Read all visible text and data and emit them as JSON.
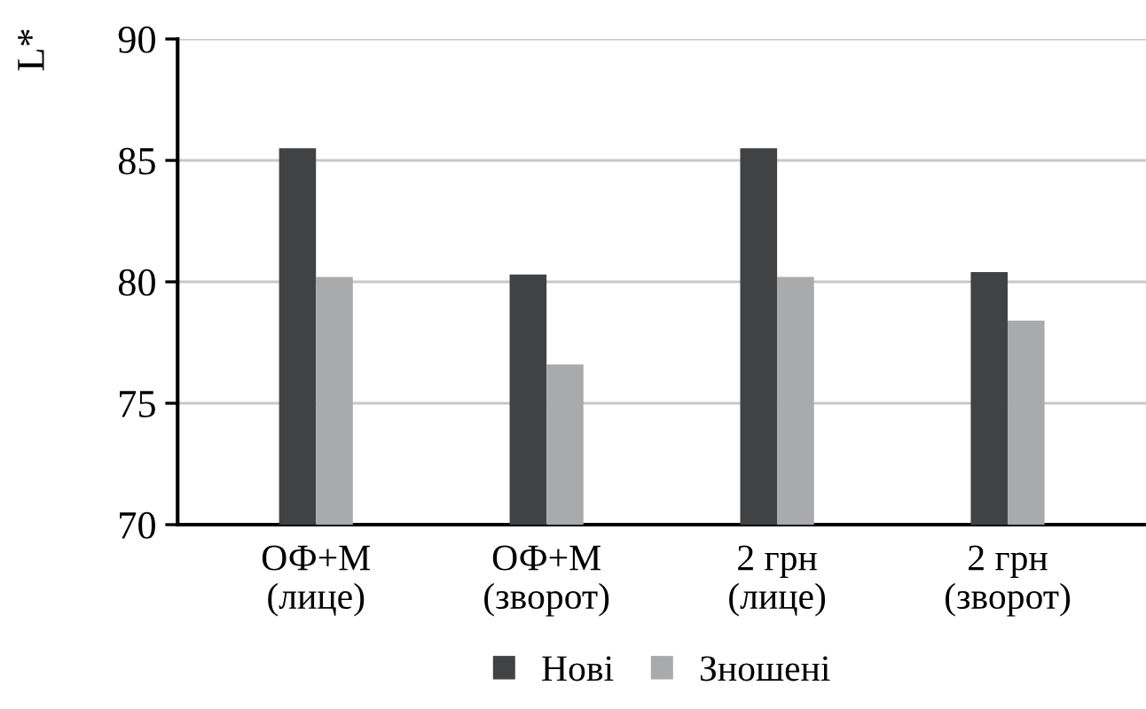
{
  "chart_data": {
    "type": "bar",
    "ylabel": "L*",
    "categories": [
      "ОФ+М\n(лице)",
      "ОФ+М\n(зворот)",
      "2 грн\n(лице)",
      "2 грн\n(зворот)"
    ],
    "series": [
      {
        "name": "Нові",
        "color": "#404243",
        "values": [
          85.5,
          80.3,
          85.5,
          80.4
        ]
      },
      {
        "name": "Зношені",
        "color": "#a9aaab",
        "values": [
          80.2,
          76.6,
          80.2,
          78.4
        ]
      }
    ],
    "ylim": [
      70,
      90
    ],
    "yticks": [
      70,
      75,
      80,
      85,
      90
    ],
    "grid": "y",
    "legend": "bottom"
  }
}
